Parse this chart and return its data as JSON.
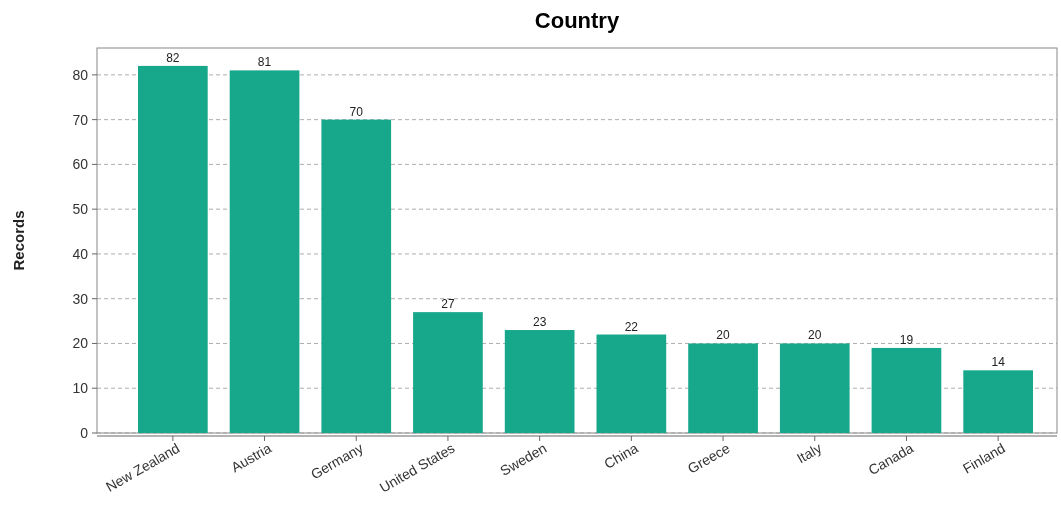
{
  "chart_data": {
    "type": "bar",
    "title": "Country",
    "ylabel": "Records",
    "categories": [
      "New Zealand",
      "Austria",
      "Germany",
      "United States",
      "Sweden",
      "China",
      "Greece",
      "Italy",
      "Canada",
      "Finland"
    ],
    "values": [
      82,
      81,
      70,
      27,
      23,
      22,
      20,
      20,
      19,
      14
    ],
    "color": "#17a88b",
    "ylim": [
      0,
      86
    ],
    "yticks": [
      0,
      10,
      20,
      30,
      40,
      50,
      60,
      70,
      80
    ],
    "grid": "y",
    "data_labels": true
  }
}
